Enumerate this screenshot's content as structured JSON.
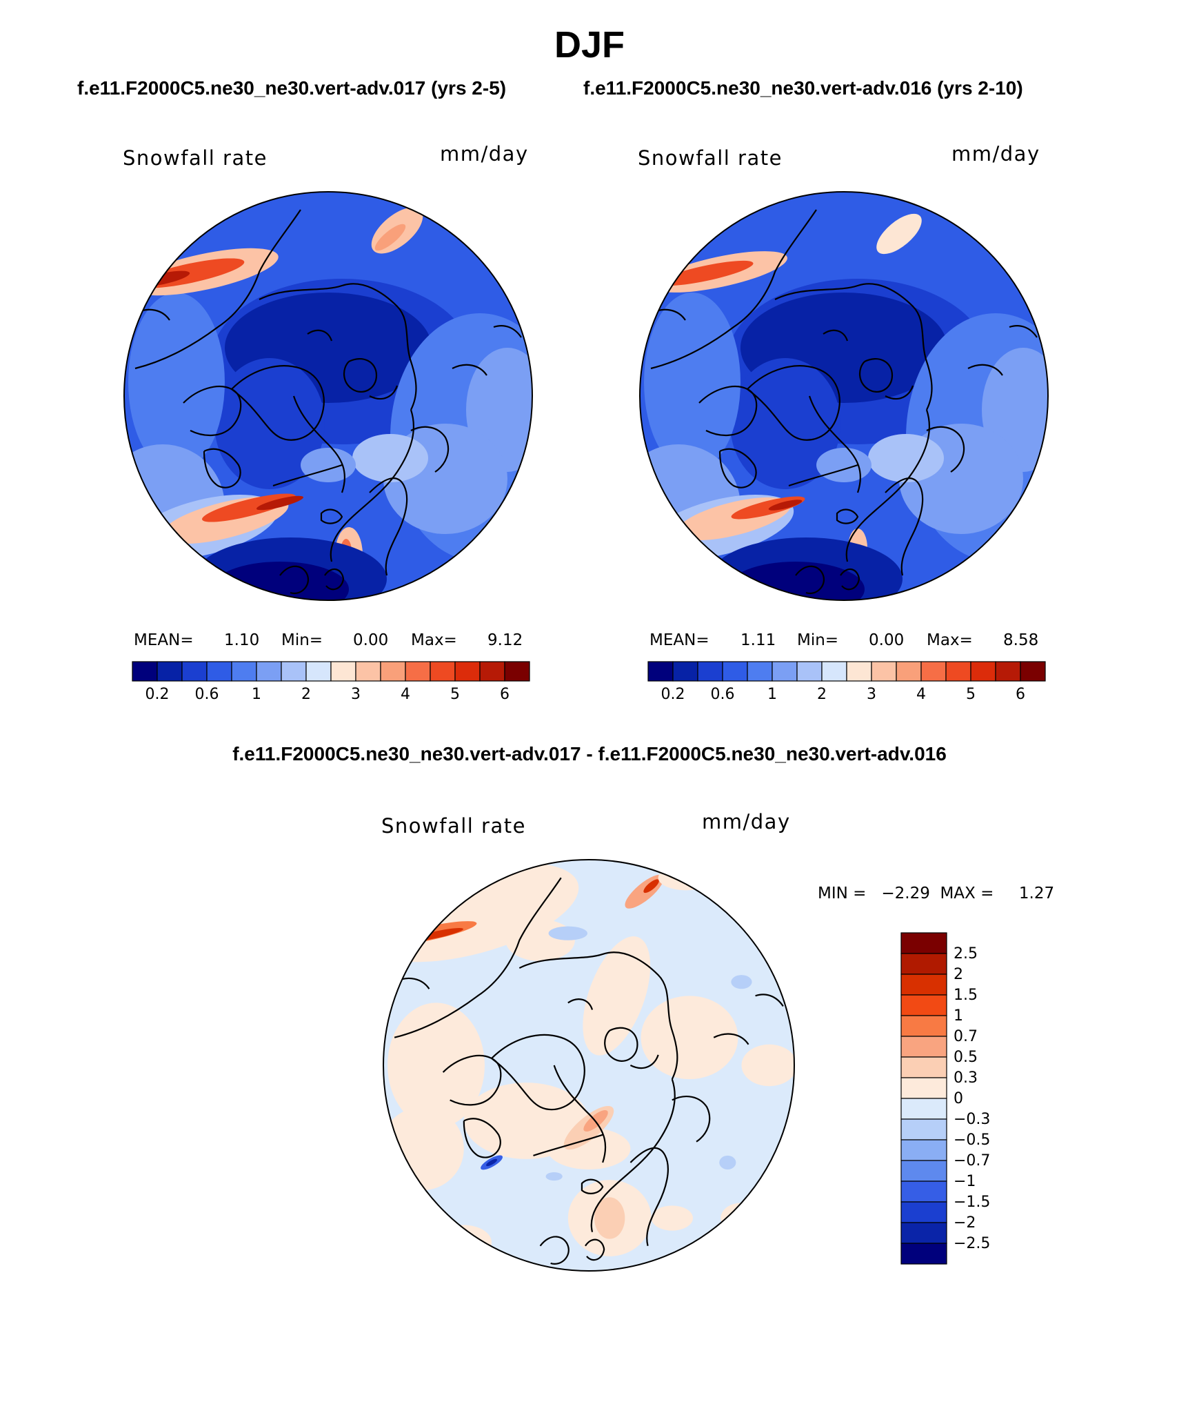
{
  "figure": {
    "title": "DJF"
  },
  "panels": [
    {
      "case_title": "f.e11.F2000C5.ne30_ne30.vert-adv.017 (yrs 2-5)",
      "variable_label": "Snowfall rate",
      "units_label": "mm/day",
      "stats": {
        "mean_label": "MEAN=",
        "mean": "1.10",
        "min_label": "Min=",
        "min": "0.00",
        "max_label": "Max=",
        "max": "9.12"
      }
    },
    {
      "case_title": "f.e11.F2000C5.ne30_ne30.vert-adv.016 (yrs 2-10)",
      "variable_label": "Snowfall rate",
      "units_label": "mm/day",
      "stats": {
        "mean_label": "MEAN=",
        "mean": "1.11",
        "min_label": "Min=",
        "min": "0.00",
        "max_label": "Max=",
        "max": "8.58"
      }
    }
  ],
  "difference": {
    "title": "f.e11.F2000C5.ne30_ne30.vert-adv.017 - f.e11.F2000C5.ne30_ne30.vert-adv.016",
    "variable_label": "Snowfall rate",
    "units_label": "mm/day",
    "stats_line": "MIN =   −2.29  MAX =     1.27"
  },
  "colorbar_abs": {
    "colors": [
      "#00007c",
      "#0722a6",
      "#1b3fd0",
      "#2f5ce6",
      "#4e7df0",
      "#7b9ff4",
      "#a9c2f8",
      "#d6e6fc",
      "#fde6d4",
      "#fcc3a6",
      "#f9a07a",
      "#f66e46",
      "#ee4a22",
      "#dc2c0a",
      "#b61a06",
      "#7a0000"
    ],
    "tick_labels": [
      "0.2",
      "0.6",
      "1",
      "2",
      "3",
      "4",
      "5",
      "6"
    ]
  },
  "colorbar_diff": {
    "colors": [
      "#7a0000",
      "#b01a00",
      "#d83000",
      "#f24a14",
      "#f87a44",
      "#f9a480",
      "#fbcfb4",
      "#fdeadb",
      "#dbeafb",
      "#b6cff8",
      "#8aaef4",
      "#5e89ee",
      "#365ee6",
      "#1b3fd0",
      "#0a24a8",
      "#00007c"
    ],
    "tick_labels": [
      "2.5",
      "2",
      "1.5",
      "1",
      "0.7",
      "0.5",
      "0.3",
      "0",
      "−0.3",
      "−0.5",
      "−0.7",
      "−1",
      "−1.5",
      "−2",
      "−2.5"
    ]
  }
}
